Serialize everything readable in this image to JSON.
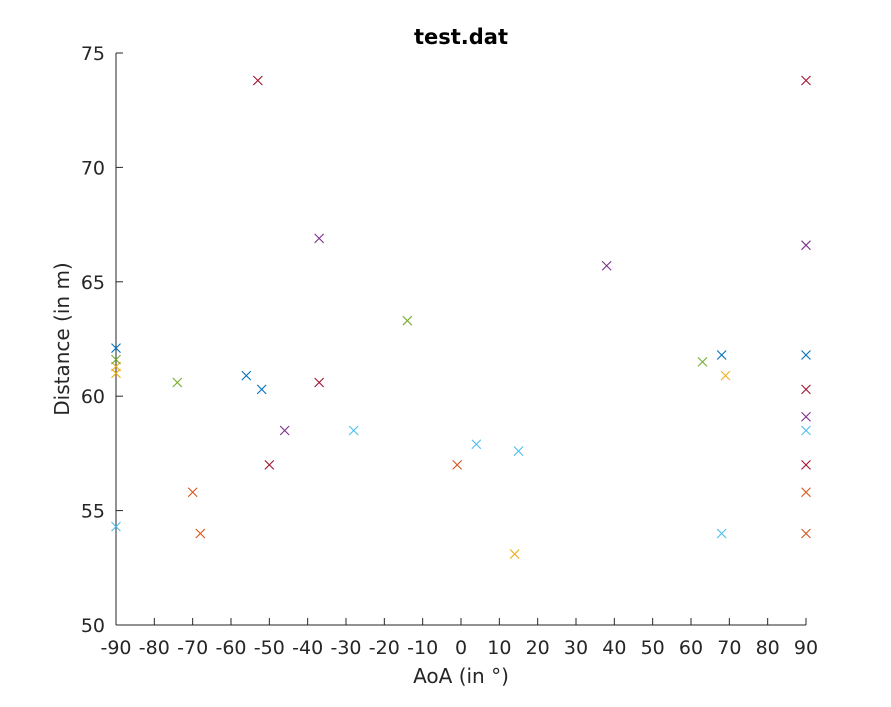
{
  "chart_data": {
    "type": "scatter",
    "title": "test.dat",
    "xlabel": "AoA (in °)",
    "ylabel": "Distance (in m)",
    "xlim": [
      -90,
      90
    ],
    "ylim": [
      50,
      75
    ],
    "xticks": [
      -90,
      -80,
      -70,
      -60,
      -50,
      -40,
      -30,
      -20,
      -10,
      0,
      10,
      20,
      30,
      40,
      50,
      60,
      70,
      80,
      90
    ],
    "yticks": [
      50,
      55,
      60,
      65,
      70,
      75
    ],
    "grid": false,
    "marker": "x",
    "colors": {
      "blue": "#0072BD",
      "orange": "#D95319",
      "yellow": "#EDB120",
      "purple": "#7E2F8E",
      "green": "#77AC30",
      "cyan": "#4DBEEE",
      "red": "#A2142F",
      "axis": "#262626"
    },
    "series": [
      {
        "color": "#0072BD",
        "points": [
          [
            -90,
            62.1
          ],
          [
            -56,
            60.9
          ],
          [
            -52,
            60.3
          ],
          [
            68,
            61.8
          ],
          [
            90,
            61.8
          ]
        ]
      },
      {
        "color": "#D95319",
        "points": [
          [
            -70,
            55.8
          ],
          [
            -68,
            54.0
          ],
          [
            -1,
            57.0
          ],
          [
            90,
            55.8
          ],
          [
            90,
            54.0
          ]
        ]
      },
      {
        "color": "#EDB120",
        "points": [
          [
            -90,
            61.3
          ],
          [
            -90,
            61.0
          ],
          [
            14,
            53.1
          ],
          [
            69,
            60.9
          ]
        ]
      },
      {
        "color": "#7E2F8E",
        "points": [
          [
            -46,
            58.5
          ],
          [
            -37,
            66.9
          ],
          [
            38,
            65.7
          ],
          [
            90,
            66.6
          ],
          [
            90,
            59.1
          ]
        ]
      },
      {
        "color": "#77AC30",
        "points": [
          [
            -90,
            61.6
          ],
          [
            -74,
            60.6
          ],
          [
            -14,
            63.3
          ],
          [
            63,
            61.5
          ]
        ]
      },
      {
        "color": "#4DBEEE",
        "points": [
          [
            -90,
            54.3
          ],
          [
            -28,
            58.5
          ],
          [
            4,
            57.9
          ],
          [
            15,
            57.6
          ],
          [
            68,
            54.0
          ],
          [
            90,
            58.5
          ]
        ]
      },
      {
        "color": "#A2142F",
        "points": [
          [
            -53,
            73.8
          ],
          [
            -37,
            60.6
          ],
          [
            -50,
            57.0
          ],
          [
            90,
            73.8
          ],
          [
            90,
            60.3
          ],
          [
            90,
            57.0
          ]
        ]
      }
    ]
  }
}
